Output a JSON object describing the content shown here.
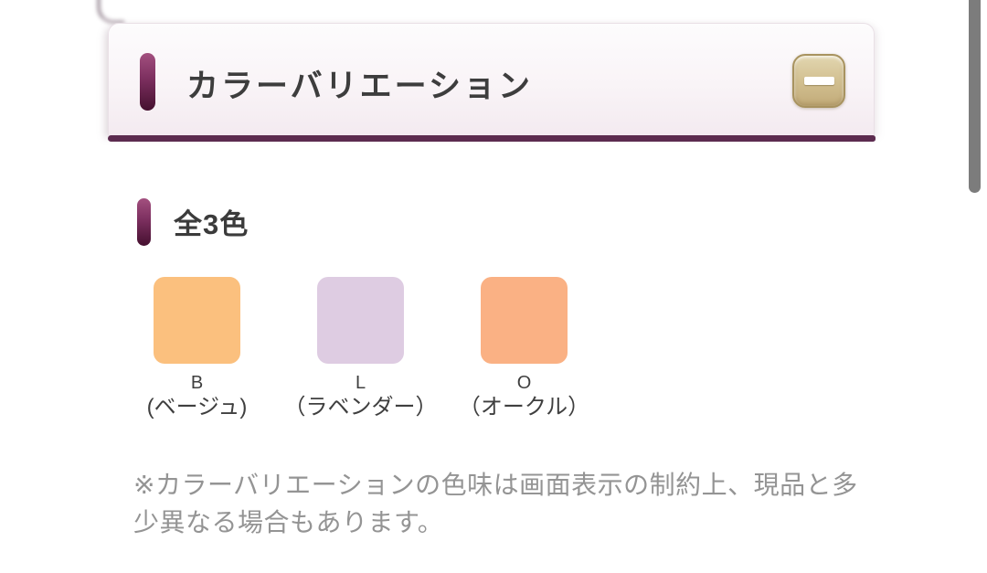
{
  "panel": {
    "title": "カラーバリエーション",
    "collapse_button": {
      "icon": "minus-icon"
    }
  },
  "content": {
    "heading": "全3色",
    "swatches": [
      {
        "code": "B",
        "name": "(ベージュ)",
        "color": "#FBC07E"
      },
      {
        "code": "L",
        "name": "（ラベンダー）",
        "color": "#DECCE2"
      },
      {
        "code": "O",
        "name": "（オークル）",
        "color": "#FAB184"
      }
    ],
    "note": "※カラーバリエーションの色味は画面表示の制約上、現品と多少異なる場合もあります。"
  },
  "theme": {
    "accent_purple": "#5C2B4F",
    "marker_gradient_top": "#A3507F",
    "marker_gradient_bottom": "#45102F",
    "button_tan": "#C9B584",
    "text_dark": "#3D3D3D",
    "note_gray": "#949494"
  }
}
